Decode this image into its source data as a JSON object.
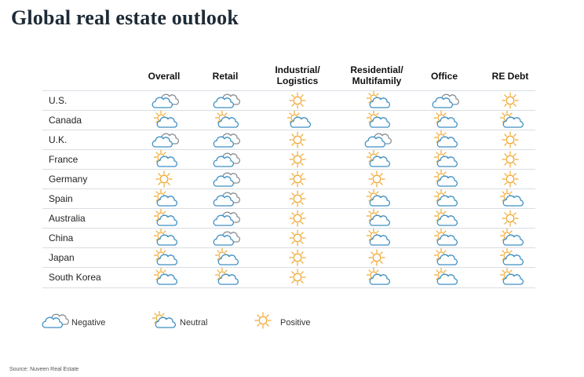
{
  "title": "Global real estate outlook",
  "columns": [
    "Overall",
    "Retail",
    "Industrial/\nLogistics",
    "Residential/\nMultifamily",
    "Office",
    "RE Debt"
  ],
  "rows": [
    {
      "country": "U.S.",
      "outlook": [
        "negative",
        "negative",
        "positive",
        "neutral",
        "negative",
        "positive"
      ]
    },
    {
      "country": "Canada",
      "outlook": [
        "neutral",
        "neutral",
        "neutral",
        "neutral",
        "neutral",
        "neutral"
      ]
    },
    {
      "country": "U.K.",
      "outlook": [
        "negative",
        "negative",
        "positive",
        "negative",
        "neutral",
        "positive"
      ]
    },
    {
      "country": "France",
      "outlook": [
        "neutral",
        "negative",
        "positive",
        "neutral",
        "neutral",
        "positive"
      ]
    },
    {
      "country": "Germany",
      "outlook": [
        "positive",
        "negative",
        "positive",
        "positive",
        "neutral",
        "positive"
      ]
    },
    {
      "country": "Spain",
      "outlook": [
        "neutral",
        "negative",
        "positive",
        "neutral",
        "neutral",
        "neutral"
      ]
    },
    {
      "country": "Australia",
      "outlook": [
        "neutral",
        "negative",
        "positive",
        "neutral",
        "neutral",
        "positive"
      ]
    },
    {
      "country": "China",
      "outlook": [
        "neutral",
        "negative",
        "positive",
        "neutral",
        "neutral",
        "neutral"
      ]
    },
    {
      "country": "Japan",
      "outlook": [
        "neutral",
        "neutral",
        "positive",
        "positive",
        "neutral",
        "neutral"
      ]
    },
    {
      "country": "South Korea",
      "outlook": [
        "neutral",
        "neutral",
        "positive",
        "neutral",
        "neutral",
        "neutral"
      ]
    }
  ],
  "legend": [
    {
      "key": "negative",
      "label": "Negative",
      "icon": "cloud-icon"
    },
    {
      "key": "neutral",
      "label": "Neutral",
      "icon": "partly-cloudy-icon"
    },
    {
      "key": "positive",
      "label": "Positive",
      "icon": "sun-icon"
    }
  ],
  "source": "Source: Nuveen Real Estate",
  "colors": {
    "cloud_blue": "#3d8fc4",
    "cloud_gray": "#8a8f94",
    "sun": "#f0a830"
  }
}
